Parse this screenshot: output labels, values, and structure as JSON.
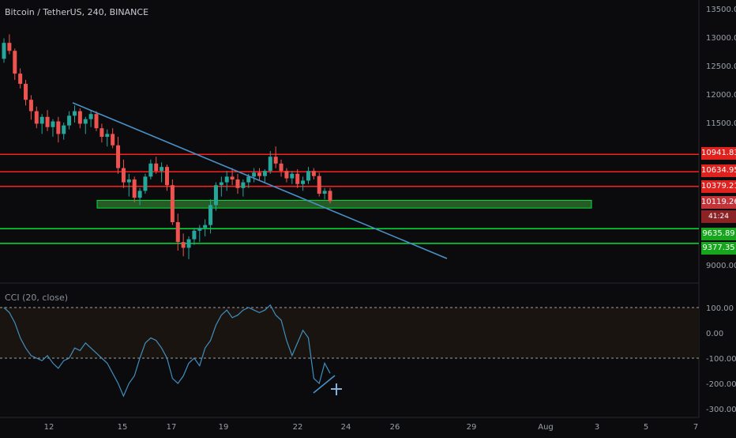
{
  "header": {
    "symbol": "Bitcoin / TetherUS, 240, BINANCE"
  },
  "indicator": {
    "label": "CCI (20, close)"
  },
  "colors": {
    "background": "#0b0b0d",
    "grid": "#1a1a1e",
    "up": "#26a69a",
    "down": "#ef5350",
    "resistance": "#ff1e1e",
    "support": "#00e23a",
    "trendline": "#4a90c8",
    "cci_line": "#3f8fbf",
    "cci_band": "#1a1410",
    "axis_text": "#9aa0a8"
  },
  "price_axis": {
    "ticks": [
      "13500.00",
      "13000.00",
      "12500.00",
      "12000.00",
      "11500.00",
      "9000.00"
    ]
  },
  "price_tags": {
    "r1": "10941.83",
    "r2": "10634.95",
    "r3": "10379.21",
    "current": "10119.26",
    "countdown": "41:24",
    "s1": "9635.89",
    "s2": "9377.35"
  },
  "cci_axis": {
    "ticks": [
      "100.00",
      "0.00",
      "-100.00",
      "-200.00",
      "-300.00"
    ]
  },
  "time_axis": {
    "ticks": [
      "12",
      "15",
      "17",
      "19",
      "22",
      "24",
      "26",
      "29",
      "Aug",
      "3",
      "5",
      "7"
    ]
  },
  "chart_data": {
    "type": "candlestick",
    "title": "Bitcoin / TetherUS, 240, BINANCE",
    "ylim": [
      8800,
      13700
    ],
    "grid": true,
    "candles": [
      [
        12620,
        12980,
        12550,
        12900
      ],
      [
        12900,
        13050,
        12700,
        12760
      ],
      [
        12760,
        12800,
        12250,
        12360
      ],
      [
        12360,
        12450,
        12100,
        12180
      ],
      [
        12180,
        12250,
        11800,
        11900
      ],
      [
        11900,
        11980,
        11550,
        11700
      ],
      [
        11700,
        11780,
        11400,
        11480
      ],
      [
        11480,
        11650,
        11300,
        11600
      ],
      [
        11600,
        11720,
        11350,
        11420
      ],
      [
        11420,
        11560,
        11250,
        11520
      ],
      [
        11520,
        11600,
        11150,
        11300
      ],
      [
        11300,
        11500,
        11200,
        11450
      ],
      [
        11450,
        11700,
        11380,
        11620
      ],
      [
        11620,
        11800,
        11500,
        11700
      ],
      [
        11700,
        11750,
        11400,
        11480
      ],
      [
        11480,
        11600,
        11300,
        11560
      ],
      [
        11560,
        11720,
        11420,
        11650
      ],
      [
        11650,
        11700,
        11350,
        11400
      ],
      [
        11400,
        11480,
        11150,
        11250
      ],
      [
        11250,
        11380,
        11080,
        11300
      ],
      [
        11300,
        11400,
        11050,
        11100
      ],
      [
        11100,
        11250,
        10600,
        10700
      ],
      [
        10700,
        10850,
        10350,
        10450
      ],
      [
        10450,
        10600,
        10200,
        10500
      ],
      [
        10500,
        10550,
        10100,
        10180
      ],
      [
        10180,
        10350,
        10050,
        10300
      ],
      [
        10300,
        10600,
        10250,
        10550
      ],
      [
        10550,
        10850,
        10500,
        10780
      ],
      [
        10780,
        10900,
        10600,
        10650
      ],
      [
        10650,
        10800,
        10450,
        10720
      ],
      [
        10720,
        10760,
        10300,
        10400
      ],
      [
        10400,
        10500,
        9700,
        9750
      ],
      [
        9750,
        9900,
        9250,
        9400
      ],
      [
        9400,
        9550,
        9150,
        9300
      ],
      [
        9300,
        9500,
        9100,
        9450
      ],
      [
        9450,
        9650,
        9350,
        9600
      ],
      [
        9600,
        9700,
        9400,
        9650
      ],
      [
        9650,
        9800,
        9500,
        9700
      ],
      [
        9700,
        10150,
        9550,
        10050
      ],
      [
        10050,
        10450,
        9950,
        10400
      ],
      [
        10400,
        10550,
        10200,
        10450
      ],
      [
        10450,
        10650,
        10300,
        10550
      ],
      [
        10550,
        10700,
        10400,
        10500
      ],
      [
        10500,
        10600,
        10250,
        10350
      ],
      [
        10350,
        10500,
        10200,
        10450
      ],
      [
        10450,
        10600,
        10350,
        10550
      ],
      [
        10550,
        10700,
        10450,
        10620
      ],
      [
        10620,
        10700,
        10480,
        10560
      ],
      [
        10560,
        10680,
        10450,
        10650
      ],
      [
        10650,
        11000,
        10600,
        10900
      ],
      [
        10900,
        11080,
        10700,
        10780
      ],
      [
        10780,
        10850,
        10550,
        10650
      ],
      [
        10650,
        10700,
        10450,
        10520
      ],
      [
        10520,
        10650,
        10420,
        10600
      ],
      [
        10600,
        10680,
        10350,
        10420
      ],
      [
        10420,
        10550,
        10300,
        10480
      ],
      [
        10480,
        10720,
        10420,
        10650
      ],
      [
        10650,
        10700,
        10500,
        10560
      ],
      [
        10560,
        10620,
        10200,
        10250
      ],
      [
        10250,
        10350,
        10150,
        10300
      ],
      [
        10300,
        10350,
        10080,
        10120
      ]
    ],
    "levels": [
      {
        "name": "resistance",
        "value": 10941.83
      },
      {
        "name": "resistance",
        "value": 10634.95
      },
      {
        "name": "resistance",
        "value": 10379.21
      },
      {
        "name": "support",
        "value": 9635.89
      },
      {
        "name": "support",
        "value": 9377.35
      }
    ],
    "zone": [
      9970,
      10050
    ],
    "trendline": [
      [
        11850,
        "Jul 12"
      ],
      [
        9050,
        "Jul 28"
      ]
    ],
    "cci": {
      "ylim": [
        -300,
        130
      ],
      "band": [
        -100,
        100
      ],
      "values": [
        100,
        80,
        40,
        -20,
        -60,
        -90,
        -100,
        -110,
        -90,
        -120,
        -140,
        -110,
        -100,
        -60,
        -70,
        -40,
        -60,
        -80,
        -100,
        -120,
        -160,
        -200,
        -250,
        -200,
        -170,
        -100,
        -40,
        -20,
        -30,
        -60,
        -100,
        -180,
        -200,
        -170,
        -120,
        -100,
        -130,
        -60,
        -30,
        30,
        70,
        90,
        60,
        70,
        90,
        100,
        90,
        80,
        90,
        110,
        70,
        50,
        -30,
        -90,
        -40,
        10,
        -20,
        -180,
        -200,
        -120,
        -160
      ]
    }
  }
}
